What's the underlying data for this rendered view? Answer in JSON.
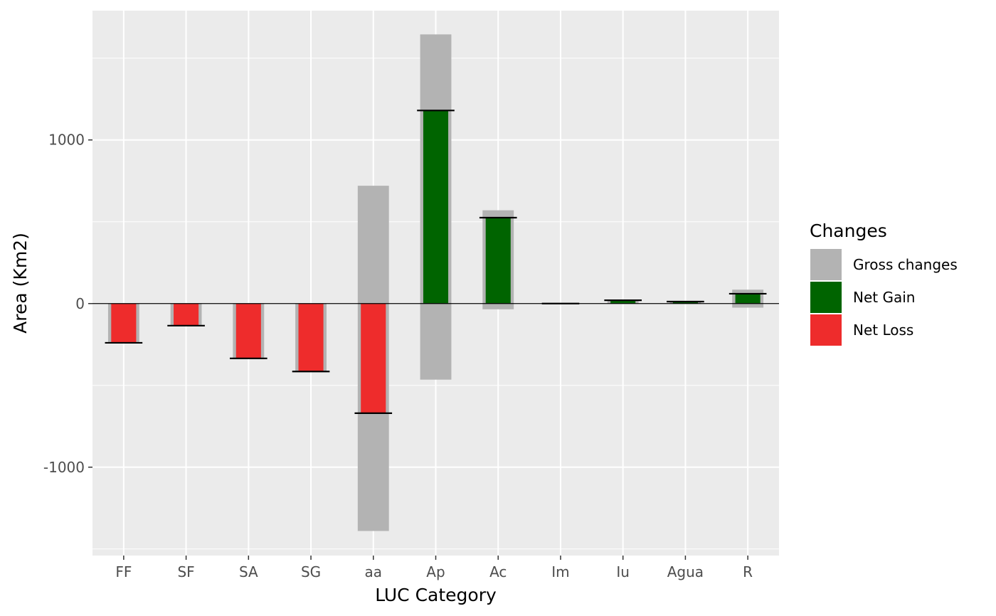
{
  "chart_data": {
    "type": "bar",
    "xlabel": "LUC Category",
    "ylabel": "Area (Km2)",
    "ylim": [
      -1540,
      1790
    ],
    "yticks": [
      -1000,
      0,
      1000
    ],
    "ytick_labels": [
      "-1000",
      "0",
      "1000"
    ],
    "categories": [
      "FF",
      "SF",
      "SA",
      "SG",
      "aa",
      "Ap",
      "Ac",
      "Im",
      "Iu",
      "Agua",
      "R"
    ],
    "series": [
      {
        "name": "Gross changes",
        "color": "#b3b3b3",
        "ranges": [
          [
            -240,
            0
          ],
          [
            -135,
            0
          ],
          [
            -340,
            0
          ],
          [
            -420,
            0
          ],
          [
            -1390,
            720
          ],
          [
            -465,
            1645
          ],
          [
            -35,
            570
          ],
          [
            -3,
            3
          ],
          [
            0,
            20
          ],
          [
            0,
            15
          ],
          [
            -25,
            85
          ]
        ]
      },
      {
        "name": "Net Gain",
        "color": "#006400",
        "values": [
          0,
          0,
          0,
          0,
          0,
          1180,
          525,
          0,
          20,
          12,
          60
        ]
      },
      {
        "name": "Net Loss",
        "color": "#ee2c2c",
        "values": [
          -240,
          -135,
          -335,
          -415,
          -670,
          0,
          0,
          0,
          0,
          0,
          0
        ]
      }
    ],
    "net_change": [
      -240,
      -135,
      -335,
      -415,
      -670,
      1180,
      525,
      0,
      20,
      12,
      60
    ],
    "legend": {
      "title": "Changes",
      "position": "right",
      "entries": [
        "Gross changes",
        "Net Gain",
        "Net Loss"
      ]
    },
    "grid": true,
    "panel_background": "#ebebeb",
    "grid_color": "#ffffff"
  }
}
